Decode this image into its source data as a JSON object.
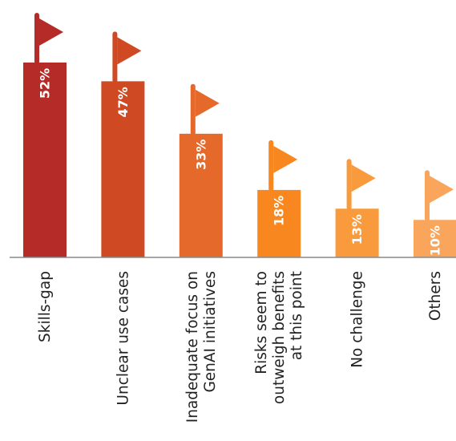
{
  "chart_data": {
    "type": "bar",
    "categories": [
      [
        "Skills-gap"
      ],
      [
        "Unclear use cases"
      ],
      [
        "Inadequate focus on",
        "GenAI initiatives"
      ],
      [
        "Risks seem to",
        "outweigh benefits",
        "at this point"
      ],
      [
        "No challenge"
      ],
      [
        "Others"
      ]
    ],
    "values": [
      52,
      47,
      33,
      18,
      13,
      10
    ],
    "value_labels": [
      "52%",
      "47%",
      "33%",
      "18%",
      "13%",
      "10%"
    ],
    "ylim": [
      0,
      60
    ],
    "grid": false,
    "legend": "none",
    "decoration": "flag-on-pole above each bar",
    "colors": [
      "#b52b27",
      "#cf4a23",
      "#e6692c",
      "#f7871e",
      "#f99a3c",
      "#f9a55c"
    ]
  }
}
